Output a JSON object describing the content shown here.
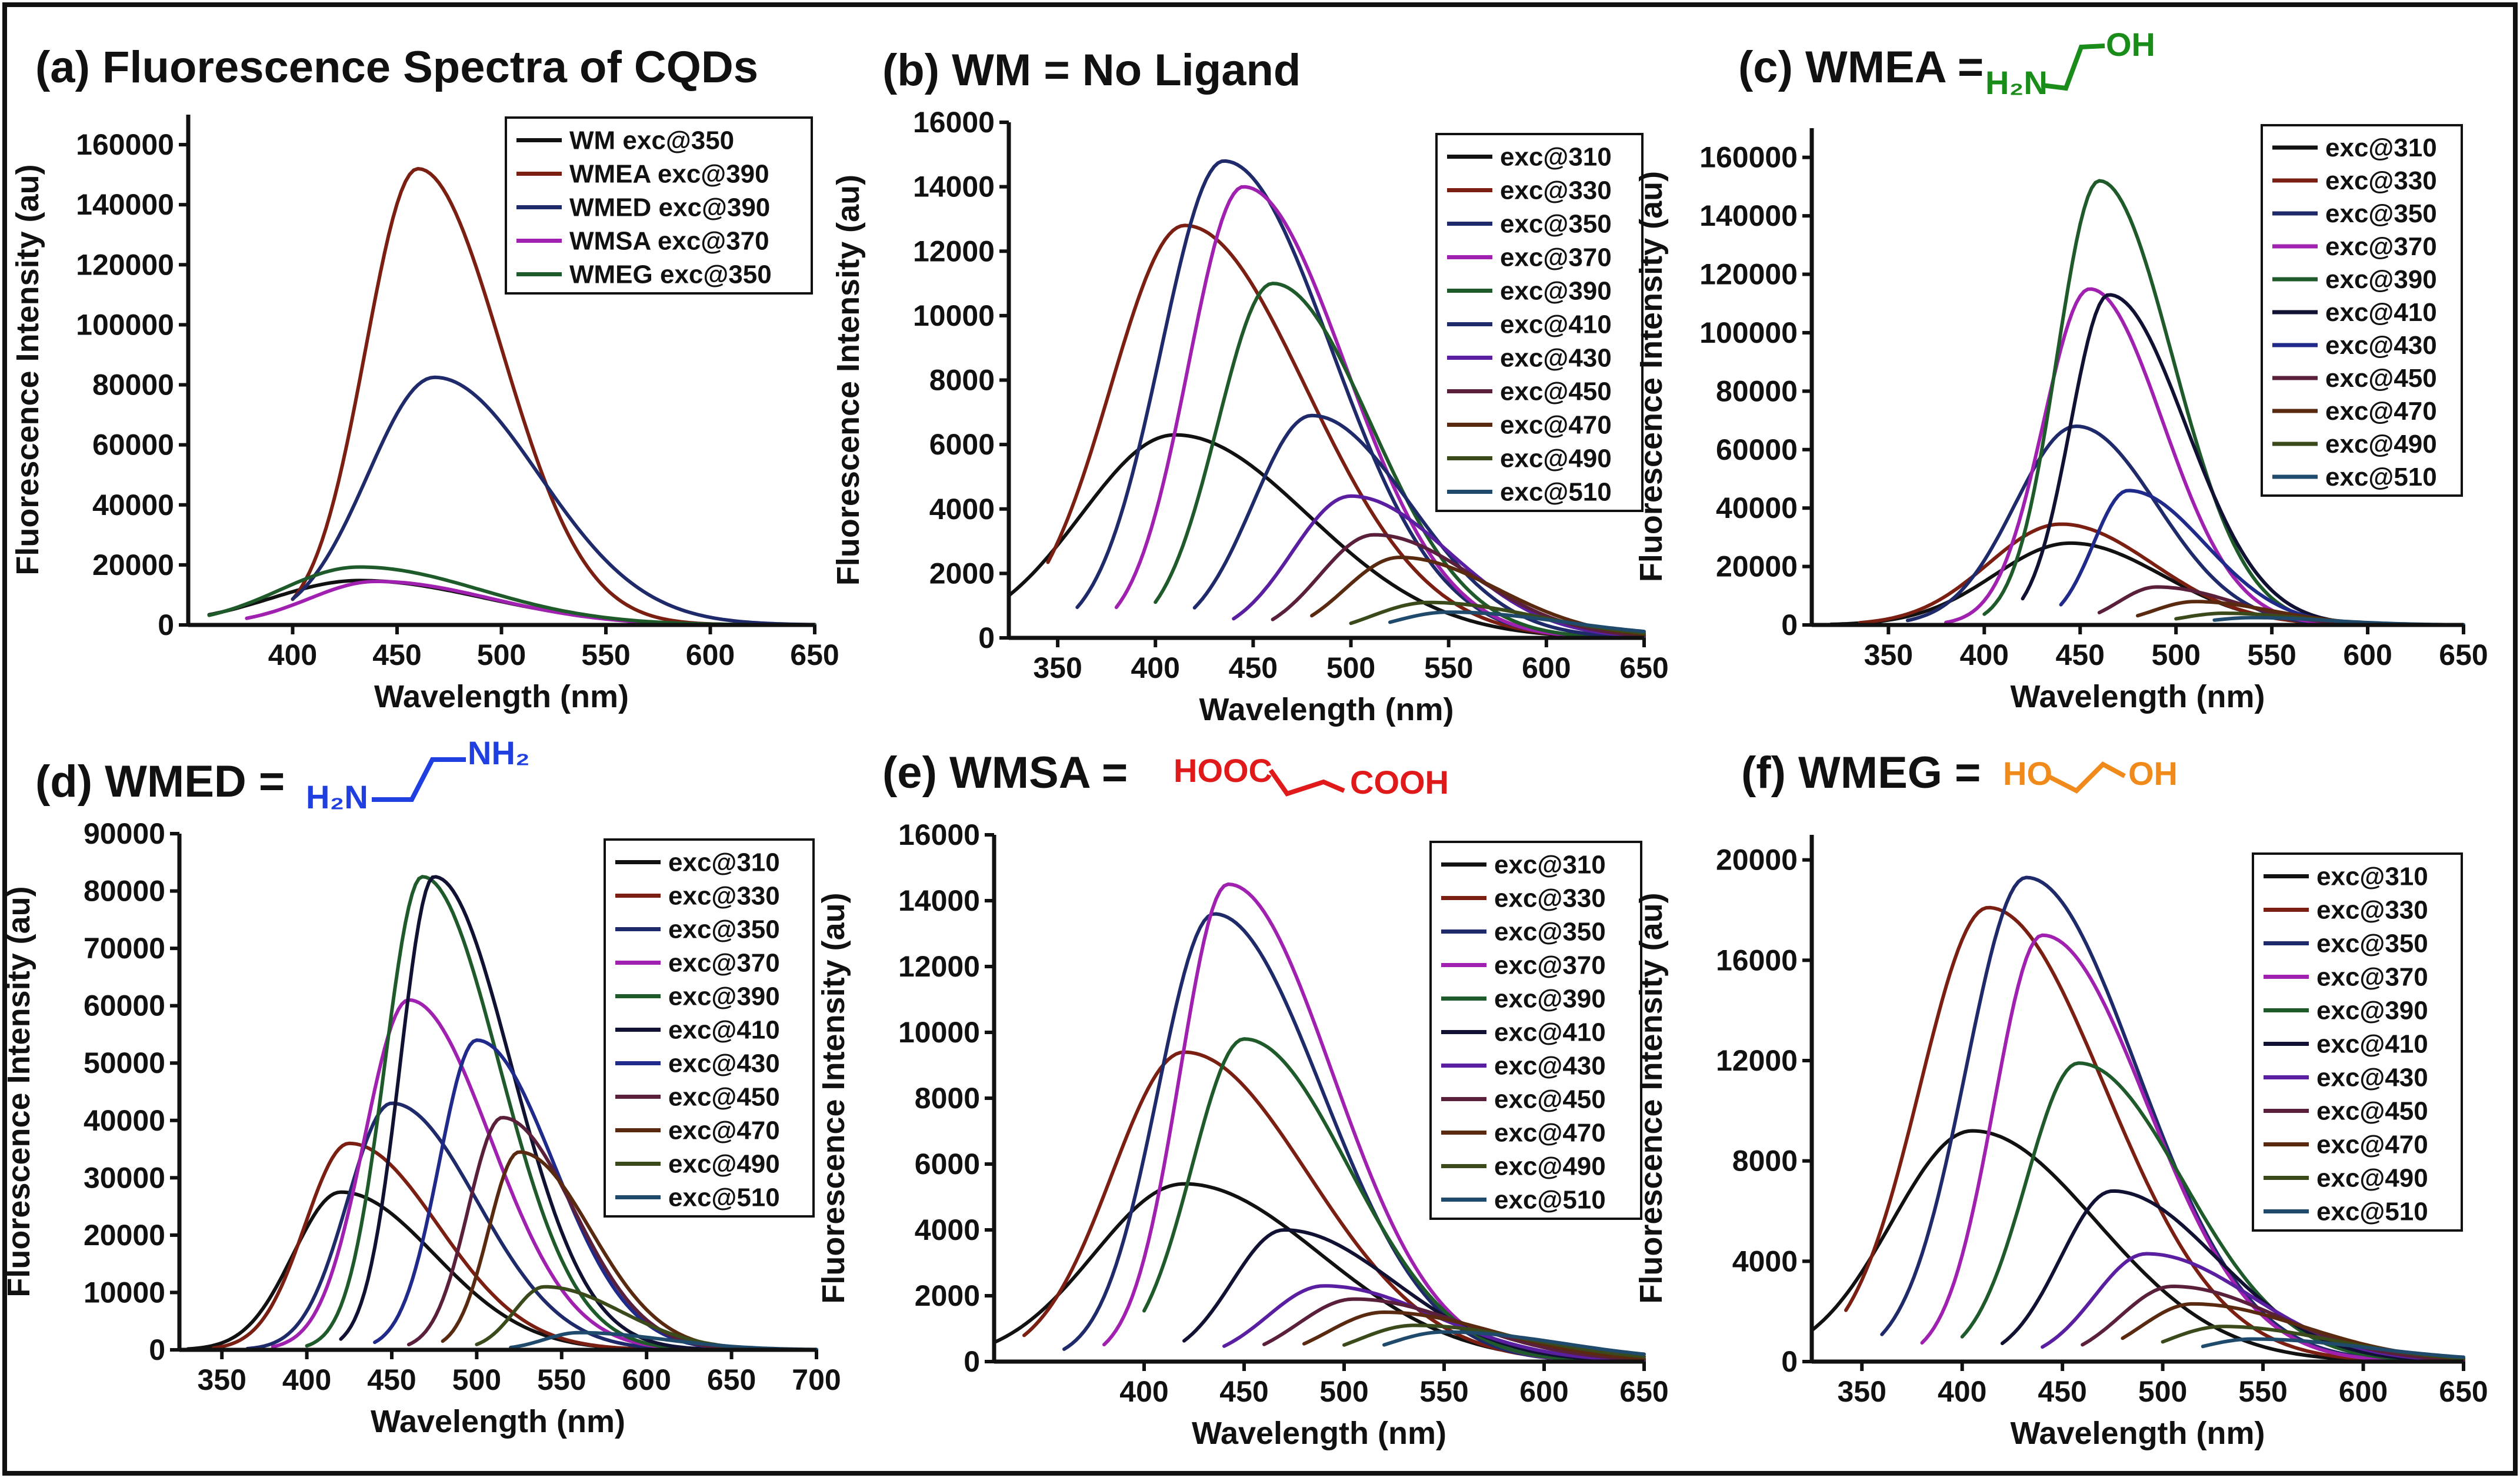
{
  "chart_data": [
    {
      "id": "a",
      "type": "line",
      "title": "(a) Fluorescence Spectra of CQDs",
      "xlabel": "Wavelength (nm)",
      "ylabel": "Fluorescence Intensity (au)",
      "xlim": [
        350,
        650
      ],
      "ylim": [
        0,
        170000
      ],
      "xticks": [
        400,
        450,
        500,
        550,
        600,
        650
      ],
      "yticks": [
        0,
        20000,
        40000,
        60000,
        80000,
        100000,
        120000,
        140000,
        160000
      ],
      "legend_position": "top-right",
      "series": [
        {
          "name": "WM exc@350",
          "color": "#111111",
          "peak": 14800,
          "center": 432,
          "start": 360,
          "left_width": 42,
          "right_width": 60
        },
        {
          "name": "WMEA exc@390",
          "color": "#7a1f12",
          "peak": 152000,
          "center": 460,
          "start": 400,
          "left_width": 25,
          "right_width": 40
        },
        {
          "name": "WMED exc@390",
          "color": "#1f2a6b",
          "peak": 82500,
          "center": 468,
          "start": 400,
          "left_width": 32,
          "right_width": 50
        },
        {
          "name": "WMSA exc@370",
          "color": "#a020b0",
          "peak": 14500,
          "center": 440,
          "start": 378,
          "left_width": 32,
          "right_width": 55
        },
        {
          "name": "WMEG exc@350",
          "color": "#1f5a2a",
          "peak": 19300,
          "center": 432,
          "start": 360,
          "left_width": 38,
          "right_width": 58
        }
      ]
    },
    {
      "id": "b",
      "type": "line",
      "title": "(b) WM  = No Ligand",
      "xlabel": "Wavelength (nm)",
      "ylabel": "Fluorescence Intensity (au)",
      "xlim": [
        325,
        650
      ],
      "ylim": [
        0,
        16000
      ],
      "xticks": [
        350,
        400,
        450,
        500,
        550,
        600,
        650
      ],
      "yticks": [
        0,
        2000,
        4000,
        6000,
        8000,
        10000,
        12000,
        14000,
        16000
      ],
      "legend_position": "top-right",
      "series": [
        {
          "name": "exc@310",
          "color": "#111111",
          "peak": 6300,
          "center": 410,
          "start": 325,
          "left_width": 48,
          "right_width": 68
        },
        {
          "name": "exc@330",
          "color": "#7a1f12",
          "peak": 12800,
          "center": 415,
          "start": 345,
          "left_width": 38,
          "right_width": 62
        },
        {
          "name": "exc@350",
          "color": "#1f2a6b",
          "peak": 14800,
          "center": 435,
          "start": 360,
          "left_width": 32,
          "right_width": 55
        },
        {
          "name": "exc@370",
          "color": "#a020b0",
          "peak": 14000,
          "center": 445,
          "start": 380,
          "left_width": 28,
          "right_width": 52
        },
        {
          "name": "exc@390",
          "color": "#1f5a2a",
          "peak": 11000,
          "center": 460,
          "start": 400,
          "left_width": 28,
          "right_width": 50
        },
        {
          "name": "exc@410",
          "color": "#1f2a6b",
          "peak": 6900,
          "center": 480,
          "start": 420,
          "left_width": 30,
          "right_width": 50
        },
        {
          "name": "exc@430",
          "color": "#5a1ea0",
          "peak": 4400,
          "center": 500,
          "start": 440,
          "left_width": 30,
          "right_width": 50
        },
        {
          "name": "exc@450",
          "color": "#5a1f3a",
          "peak": 3200,
          "center": 512,
          "start": 460,
          "left_width": 28,
          "right_width": 50
        },
        {
          "name": "exc@470",
          "color": "#5a2a10",
          "peak": 2500,
          "center": 525,
          "start": 480,
          "left_width": 28,
          "right_width": 50
        },
        {
          "name": "exc@490",
          "color": "#3a4a1a",
          "peak": 1100,
          "center": 540,
          "start": 500,
          "left_width": 30,
          "right_width": 55
        },
        {
          "name": "exc@510",
          "color": "#1f4a6b",
          "peak": 800,
          "center": 550,
          "start": 520,
          "left_width": 30,
          "right_width": 60
        }
      ]
    },
    {
      "id": "c",
      "type": "line",
      "title": "(c) WMEA =",
      "xlabel": "Wavelength (nm)",
      "ylabel": "Fluorescence Intensity (au)",
      "xlim": [
        310,
        650
      ],
      "ylim": [
        0,
        170000
      ],
      "xticks": [
        350,
        400,
        450,
        500,
        550,
        600,
        650
      ],
      "yticks": [
        0,
        20000,
        40000,
        60000,
        80000,
        100000,
        120000,
        140000,
        160000
      ],
      "legend_position": "top-right",
      "series": [
        {
          "name": "exc@310",
          "color": "#111111",
          "peak": 28000,
          "center": 445,
          "start": 320,
          "left_width": 40,
          "right_width": 48
        },
        {
          "name": "exc@330",
          "color": "#7a1f12",
          "peak": 34500,
          "center": 440,
          "start": 335,
          "left_width": 38,
          "right_width": 48
        },
        {
          "name": "exc@350",
          "color": "#1f2a6b",
          "peak": 68000,
          "center": 448,
          "start": 360,
          "left_width": 32,
          "right_width": 42
        },
        {
          "name": "exc@370",
          "color": "#a020b0",
          "peak": 115000,
          "center": 455,
          "start": 380,
          "left_width": 24,
          "right_width": 38
        },
        {
          "name": "exc@390",
          "color": "#1f5a2a",
          "peak": 152000,
          "center": 460,
          "start": 400,
          "left_width": 22,
          "right_width": 38
        },
        {
          "name": "exc@410",
          "color": "#111133",
          "peak": 113000,
          "center": 465,
          "start": 420,
          "left_width": 20,
          "right_width": 40
        },
        {
          "name": "exc@430",
          "color": "#1f2a8b",
          "peak": 46000,
          "center": 475,
          "start": 440,
          "left_width": 18,
          "right_width": 40
        },
        {
          "name": "exc@450",
          "color": "#5a1f3a",
          "peak": 13000,
          "center": 490,
          "start": 460,
          "left_width": 20,
          "right_width": 40
        },
        {
          "name": "exc@470",
          "color": "#5a2a10",
          "peak": 8000,
          "center": 510,
          "start": 480,
          "left_width": 22,
          "right_width": 40
        },
        {
          "name": "exc@490",
          "color": "#3a4a1a",
          "peak": 4000,
          "center": 525,
          "start": 500,
          "left_width": 22,
          "right_width": 40
        },
        {
          "name": "exc@510",
          "color": "#1f4a6b",
          "peak": 2500,
          "center": 540,
          "start": 520,
          "left_width": 22,
          "right_width": 40
        }
      ]
    },
    {
      "id": "d",
      "type": "line",
      "title": "(d) WMED =",
      "xlabel": "Wavelength (nm)",
      "ylabel": "Fluorescence Intensity (au)",
      "xlim": [
        325,
        700
      ],
      "ylim": [
        0,
        90000
      ],
      "xticks": [
        350,
        400,
        450,
        500,
        550,
        600,
        650,
        700
      ],
      "yticks": [
        0,
        10000,
        20000,
        30000,
        40000,
        50000,
        60000,
        70000,
        80000,
        90000
      ],
      "legend_position": "top-right",
      "series": [
        {
          "name": "exc@310",
          "color": "#111111",
          "peak": 27500,
          "center": 420,
          "start": 330,
          "left_width": 28,
          "right_width": 55
        },
        {
          "name": "exc@330",
          "color": "#7a1f12",
          "peak": 36000,
          "center": 425,
          "start": 345,
          "left_width": 26,
          "right_width": 52
        },
        {
          "name": "exc@350",
          "color": "#1f2a6b",
          "peak": 43000,
          "center": 450,
          "start": 365,
          "left_width": 26,
          "right_width": 50
        },
        {
          "name": "exc@370",
          "color": "#a020b0",
          "peak": 61000,
          "center": 460,
          "start": 380,
          "left_width": 26,
          "right_width": 48
        },
        {
          "name": "exc@390",
          "color": "#1f5a2a",
          "peak": 82500,
          "center": 468,
          "start": 400,
          "left_width": 22,
          "right_width": 45
        },
        {
          "name": "exc@410",
          "color": "#111133",
          "peak": 82500,
          "center": 475,
          "start": 420,
          "left_width": 20,
          "right_width": 45
        },
        {
          "name": "exc@430",
          "color": "#1f2a8b",
          "peak": 54000,
          "center": 500,
          "start": 440,
          "left_width": 22,
          "right_width": 45
        },
        {
          "name": "exc@450",
          "color": "#5a1f3a",
          "peak": 40500,
          "center": 515,
          "start": 460,
          "left_width": 20,
          "right_width": 42
        },
        {
          "name": "exc@470",
          "color": "#5a2a10",
          "peak": 34500,
          "center": 525,
          "start": 480,
          "left_width": 18,
          "right_width": 42
        },
        {
          "name": "exc@490",
          "color": "#3a4a1a",
          "peak": 11000,
          "center": 540,
          "start": 500,
          "left_width": 18,
          "right_width": 45
        },
        {
          "name": "exc@510",
          "color": "#1f4a6b",
          "peak": 3000,
          "center": 560,
          "start": 520,
          "left_width": 20,
          "right_width": 50
        }
      ]
    },
    {
      "id": "e",
      "type": "line",
      "title": "(e) WMSA =",
      "xlabel": "Wavelength (nm)",
      "ylabel": "Fluorescence Intensity (au)",
      "xlim": [
        325,
        650
      ],
      "ylim": [
        0,
        16000
      ],
      "xticks": [
        400,
        450,
        500,
        550,
        600,
        650
      ],
      "yticks": [
        0,
        2000,
        4000,
        6000,
        8000,
        10000,
        12000,
        14000,
        16000
      ],
      "legend_position": "top-right",
      "series": [
        {
          "name": "exc@310",
          "color": "#111111",
          "peak": 5400,
          "center": 420,
          "start": 325,
          "left_width": 45,
          "right_width": 68
        },
        {
          "name": "exc@330",
          "color": "#7a1f12",
          "peak": 9400,
          "center": 420,
          "start": 340,
          "left_width": 36,
          "right_width": 62
        },
        {
          "name": "exc@350",
          "color": "#1f2a6b",
          "peak": 13600,
          "center": 435,
          "start": 360,
          "left_width": 28,
          "right_width": 54
        },
        {
          "name": "exc@370",
          "color": "#a020b0",
          "peak": 14500,
          "center": 442,
          "start": 380,
          "left_width": 24,
          "right_width": 52
        },
        {
          "name": "exc@390",
          "color": "#1f5a2a",
          "peak": 9800,
          "center": 450,
          "start": 400,
          "left_width": 26,
          "right_width": 52
        },
        {
          "name": "exc@410",
          "color": "#111133",
          "peak": 4000,
          "center": 470,
          "start": 420,
          "left_width": 26,
          "right_width": 55
        },
        {
          "name": "exc@430",
          "color": "#5a1ea0",
          "peak": 2300,
          "center": 490,
          "start": 440,
          "left_width": 28,
          "right_width": 55
        },
        {
          "name": "exc@450",
          "color": "#5a1f3a",
          "peak": 1900,
          "center": 505,
          "start": 460,
          "left_width": 28,
          "right_width": 55
        },
        {
          "name": "exc@470",
          "color": "#5a2a10",
          "peak": 1500,
          "center": 520,
          "start": 480,
          "left_width": 28,
          "right_width": 55
        },
        {
          "name": "exc@490",
          "color": "#3a4a1a",
          "peak": 1100,
          "center": 535,
          "start": 500,
          "left_width": 28,
          "right_width": 58
        },
        {
          "name": "exc@510",
          "color": "#1f4a6b",
          "peak": 900,
          "center": 550,
          "start": 520,
          "left_width": 28,
          "right_width": 60
        }
      ]
    },
    {
      "id": "f",
      "type": "line",
      "title": "(f) WMEG =",
      "xlabel": "Wavelength (nm)",
      "ylabel": "Fluorescence Intensity (au)",
      "xlim": [
        325,
        650
      ],
      "ylim": [
        0,
        21000
      ],
      "xticks": [
        350,
        400,
        450,
        500,
        550,
        600,
        650
      ],
      "yticks": [
        0,
        4000,
        8000,
        12000,
        16000,
        20000
      ],
      "legend_position": "top-right",
      "series": [
        {
          "name": "exc@310",
          "color": "#111111",
          "peak": 9200,
          "center": 405,
          "start": 325,
          "left_width": 40,
          "right_width": 62
        },
        {
          "name": "exc@330",
          "color": "#7a1f12",
          "peak": 18100,
          "center": 413,
          "start": 342,
          "left_width": 34,
          "right_width": 58
        },
        {
          "name": "exc@350",
          "color": "#1f2a6b",
          "peak": 19300,
          "center": 432,
          "start": 360,
          "left_width": 30,
          "right_width": 55
        },
        {
          "name": "exc@370",
          "color": "#a020b0",
          "peak": 17000,
          "center": 440,
          "start": 380,
          "left_width": 24,
          "right_width": 52
        },
        {
          "name": "exc@390",
          "color": "#1f5a2a",
          "peak": 11900,
          "center": 458,
          "start": 400,
          "left_width": 26,
          "right_width": 52
        },
        {
          "name": "exc@410",
          "color": "#111133",
          "peak": 6800,
          "center": 475,
          "start": 420,
          "left_width": 26,
          "right_width": 52
        },
        {
          "name": "exc@430",
          "color": "#5a1ea0",
          "peak": 4300,
          "center": 492,
          "start": 440,
          "left_width": 26,
          "right_width": 52
        },
        {
          "name": "exc@450",
          "color": "#5a1f3a",
          "peak": 3000,
          "center": 505,
          "start": 460,
          "left_width": 26,
          "right_width": 52
        },
        {
          "name": "exc@470",
          "color": "#5a2a10",
          "peak": 2300,
          "center": 515,
          "start": 480,
          "left_width": 26,
          "right_width": 55
        },
        {
          "name": "exc@490",
          "color": "#3a4a1a",
          "peak": 1400,
          "center": 530,
          "start": 500,
          "left_width": 28,
          "right_width": 55
        },
        {
          "name": "exc@510",
          "color": "#1f4a6b",
          "peak": 900,
          "center": 545,
          "start": 520,
          "left_width": 28,
          "right_width": 58
        }
      ]
    }
  ],
  "structures": {
    "c": {
      "left": "H₂N",
      "right": "OH",
      "color": "#1a8c1a"
    },
    "d": {
      "left": "H₂N",
      "right": "NH₂",
      "color": "#1f3fe0"
    },
    "e": {
      "left": "HOOC",
      "right": "COOH",
      "color": "#e01a1a"
    },
    "f": {
      "left": "HO",
      "right": "OH",
      "color": "#f08a1a"
    }
  }
}
